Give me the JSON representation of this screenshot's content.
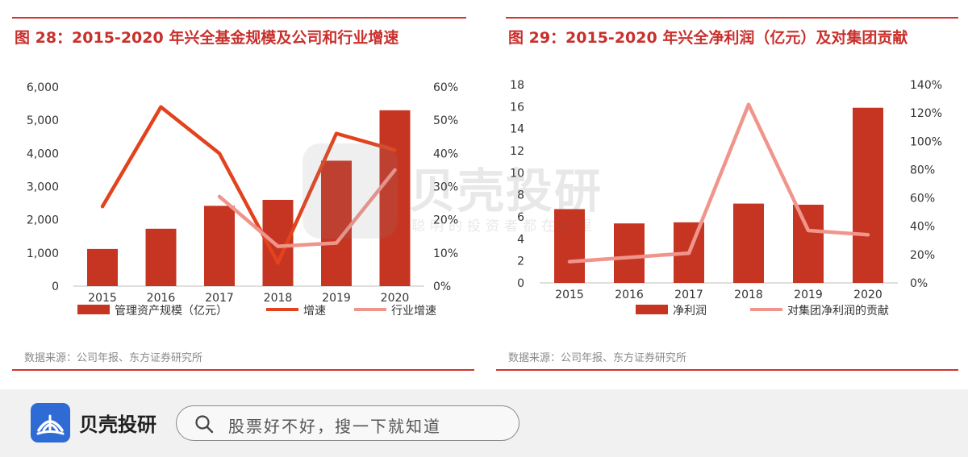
{
  "left_panel": {
    "title": "图 28：2015-2020 年兴全基金规模及公司和行业增速",
    "source": "数据来源：公司年报、东方证券研究所"
  },
  "right_panel": {
    "title": "图 29：2015-2020 年兴全净利润（亿元）及对集团贡献",
    "source": "数据来源：公司年报、东方证券研究所"
  },
  "chart_data": [
    {
      "type": "bar",
      "categories": [
        "2015",
        "2016",
        "2017",
        "2018",
        "2019",
        "2020"
      ],
      "y_left": {
        "ylim": [
          0,
          6000
        ],
        "ticks": [
          "0",
          "1,000",
          "2,000",
          "3,000",
          "4,000",
          "5,000",
          "6,000"
        ]
      },
      "y_right": {
        "ylim": [
          0,
          60
        ],
        "ticks": [
          "0%",
          "10%",
          "20%",
          "30%",
          "40%",
          "50%",
          "60%"
        ]
      },
      "series": [
        {
          "name": "管理资产规模（亿元）",
          "kind": "bar",
          "axis": "left",
          "color": "#c63522",
          "values": [
            1120,
            1730,
            2420,
            2600,
            3780,
            5300
          ]
        },
        {
          "name": "增速",
          "kind": "line",
          "axis": "right",
          "color": "#e2431e",
          "values": [
            24,
            54,
            40,
            7,
            46,
            41
          ]
        },
        {
          "name": "行业增速",
          "kind": "line",
          "axis": "right",
          "color": "#f0958c",
          "values": [
            null,
            null,
            27,
            12,
            13,
            35
          ]
        }
      ],
      "legend_position": "bottom",
      "grid": false
    },
    {
      "type": "bar",
      "categories": [
        "2015",
        "2016",
        "2017",
        "2018",
        "2019",
        "2020"
      ],
      "y_left": {
        "ylim": [
          0,
          18
        ],
        "ticks": [
          "0",
          "2",
          "4",
          "6",
          "8",
          "10",
          "12",
          "14",
          "16",
          "18"
        ]
      },
      "y_right": {
        "ylim": [
          0,
          140
        ],
        "ticks": [
          "0%",
          "20%",
          "40%",
          "60%",
          "80%",
          "100%",
          "120%",
          "140%"
        ]
      },
      "series": [
        {
          "name": "净利润",
          "kind": "bar",
          "axis": "left",
          "color": "#c63522",
          "values": [
            6.7,
            5.4,
            5.5,
            7.2,
            7.1,
            15.9
          ]
        },
        {
          "name": "对集团净利润的贡献",
          "kind": "line",
          "axis": "right",
          "color": "#f0958c",
          "values": [
            15,
            18,
            21,
            126,
            37,
            34
          ]
        }
      ],
      "legend_position": "bottom",
      "grid": false
    }
  ],
  "watermark": {
    "text": "贝壳投研",
    "subtext": "聪明的投资者都在这里"
  },
  "footer": {
    "brand": "贝壳投研",
    "search_placeholder": "股票好不好，搜一下就知道"
  }
}
